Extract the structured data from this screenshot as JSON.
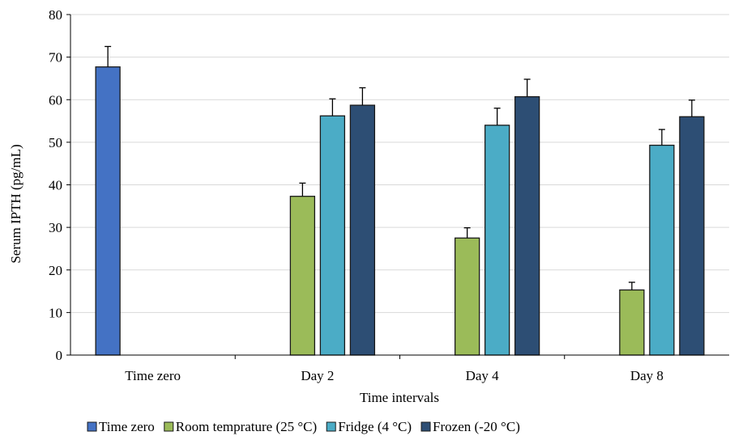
{
  "chart_data": {
    "type": "bar",
    "title": "",
    "xlabel": "Time intervals",
    "ylabel": "Serum IPTH (pg/mL)",
    "ylim": [
      0,
      80
    ],
    "yticks": [
      0,
      10,
      20,
      30,
      40,
      50,
      60,
      70,
      80
    ],
    "grid": true,
    "legend_position": "bottom",
    "categories": [
      "Time zero",
      "Day 2",
      "Day 4",
      "Day 8"
    ],
    "series": [
      {
        "name": "Time zero",
        "color": "#4472C4",
        "values": [
          67.7,
          null,
          null,
          null
        ],
        "errors": [
          4.8,
          null,
          null,
          null
        ]
      },
      {
        "name": "Room temprature (25 °C)",
        "color": "#9BBB59",
        "values": [
          null,
          37.3,
          27.5,
          15.3
        ],
        "errors": [
          null,
          3.1,
          2.4,
          1.8
        ]
      },
      {
        "name": "Fridge (4 °C)",
        "color": "#4BACC6",
        "values": [
          null,
          56.2,
          54.0,
          49.3
        ],
        "errors": [
          null,
          4.0,
          4.0,
          3.7
        ]
      },
      {
        "name": "Frozen (-20 °C)",
        "color": "#2D4E74",
        "values": [
          null,
          58.7,
          60.7,
          56.0
        ],
        "errors": [
          null,
          4.1,
          4.1,
          3.9
        ]
      }
    ]
  }
}
